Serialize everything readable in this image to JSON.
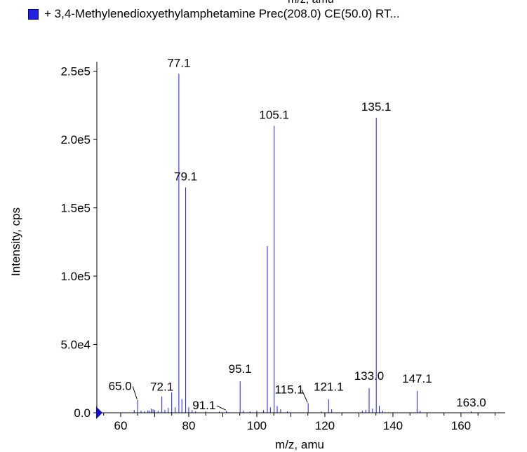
{
  "header": {
    "top_label": "m/z, amu"
  },
  "colors": {
    "series": "#1a1aff",
    "legend_swatch": "#2020e0",
    "axis": "#000000",
    "marker": "#1010c0"
  },
  "chart_data": {
    "type": "bar",
    "title": "",
    "legend": [
      {
        "name": "+ 3,4-Methylenedioxyethylamphetamine Prec(208.0) CE(50.0) RT...",
        "marker": "square"
      }
    ],
    "xlabel": "m/z, amu",
    "ylabel": "Intensity, cps",
    "xlim": [
      53,
      173
    ],
    "ylim": [
      0,
      257000
    ],
    "xticks": [
      {
        "v": 60,
        "label": "60"
      },
      {
        "v": 80,
        "label": "80"
      },
      {
        "v": 100,
        "label": "100"
      },
      {
        "v": 120,
        "label": "120"
      },
      {
        "v": 140,
        "label": "140"
      },
      {
        "v": 160,
        "label": "160"
      }
    ],
    "yticks": [
      {
        "v": 0,
        "label": "0.0"
      },
      {
        "v": 50000,
        "label": "5.0e4"
      },
      {
        "v": 100000,
        "label": "1.0e5"
      },
      {
        "v": 150000,
        "label": "1.5e5"
      },
      {
        "v": 200000,
        "label": "2.0e5"
      },
      {
        "v": 250000,
        "label": "2.5e5"
      }
    ],
    "peaks": [
      [
        64.0,
        2000
      ],
      [
        65.0,
        9500
      ],
      [
        66.0,
        1500
      ],
      [
        67.0,
        1200
      ],
      [
        68.0,
        1800
      ],
      [
        68.5,
        1400
      ],
      [
        69.0,
        3000
      ],
      [
        69.5,
        2500
      ],
      [
        70.0,
        2000
      ],
      [
        71.0,
        1500
      ],
      [
        72.1,
        12000
      ],
      [
        73.0,
        2000
      ],
      [
        74.0,
        3500
      ],
      [
        75.0,
        15000
      ],
      [
        76.0,
        4000
      ],
      [
        77.1,
        248000
      ],
      [
        78.0,
        10000
      ],
      [
        79.1,
        165000
      ],
      [
        80.0,
        4000
      ],
      [
        81.0,
        2000
      ],
      [
        82.0,
        1000
      ],
      [
        85.0,
        1000
      ],
      [
        89.0,
        1000
      ],
      [
        91.1,
        1500
      ],
      [
        95.1,
        23000
      ],
      [
        96.0,
        1500
      ],
      [
        98.0,
        1000
      ],
      [
        100.0,
        1500
      ],
      [
        102.0,
        2000
      ],
      [
        103.1,
        122000
      ],
      [
        104.0,
        4000
      ],
      [
        105.1,
        210000
      ],
      [
        106.0,
        5000
      ],
      [
        107.0,
        2500
      ],
      [
        109.0,
        1000
      ],
      [
        115.1,
        7000
      ],
      [
        119.0,
        1000
      ],
      [
        121.1,
        10000
      ],
      [
        122.0,
        2500
      ],
      [
        131.0,
        1500
      ],
      [
        132.0,
        2000
      ],
      [
        133.0,
        18000
      ],
      [
        134.0,
        3000
      ],
      [
        135.1,
        216000
      ],
      [
        136.0,
        5000
      ],
      [
        137.0,
        1500
      ],
      [
        147.1,
        16000
      ],
      [
        148.0,
        1500
      ],
      [
        163.0,
        1000
      ]
    ],
    "peak_labels": [
      {
        "x": 77.1,
        "label": "77.1"
      },
      {
        "x": 79.1,
        "label": "79.1"
      },
      {
        "x": 105.1,
        "label": "105.1"
      },
      {
        "x": 135.1,
        "label": "135.1"
      },
      {
        "x": 95.1,
        "label": "95.1"
      },
      {
        "x": 133.0,
        "label": "133.0"
      },
      {
        "x": 147.1,
        "label": "147.1"
      },
      {
        "x": 121.1,
        "label": "121.1"
      },
      {
        "x": 72.1,
        "label": "72.1"
      },
      {
        "x": 65.0,
        "label": "65.0"
      },
      {
        "x": 115.1,
        "label": "115.1"
      },
      {
        "x": 91.1,
        "label": "91.1"
      },
      {
        "x": 163.0,
        "label": "163.0"
      }
    ]
  }
}
